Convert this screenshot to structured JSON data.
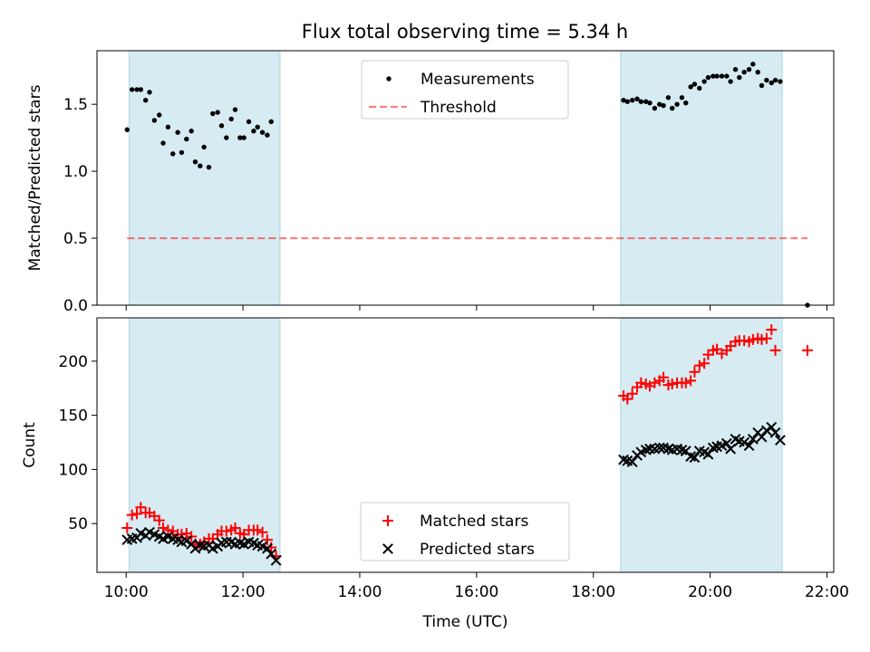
{
  "figure": {
    "title": "Flux total observing time = 5.34 h"
  },
  "colors": {
    "span_fill": "#add8e6",
    "measurement": "#000000",
    "threshold": "#ff0000",
    "matched": "#ff0000",
    "predicted": "#000000"
  },
  "chart_data": [
    {
      "type": "scatter",
      "panel": "top",
      "ylabel": "Matched/Predicted stars",
      "xlim": [
        "09:30",
        "22:07"
      ],
      "ylim": [
        0,
        1.9
      ],
      "yticks": [
        0.0,
        0.5,
        1.0,
        1.5
      ],
      "ytick_labels": [
        "0.0",
        "0.5",
        "1.0",
        "1.5"
      ],
      "x_tick_labels_shown": false,
      "grid": false,
      "legend": {
        "placement": "upper-center",
        "entries": [
          "Measurements",
          "Threshold"
        ]
      },
      "shaded_spans": [
        {
          "start": "10:03",
          "end": "12:38"
        },
        {
          "start": "18:28",
          "end": "21:14"
        }
      ],
      "series": [
        {
          "name": "Measurements",
          "style": "dots",
          "points": [
            [
              "10:01",
              1.31
            ],
            [
              "10:06",
              1.61
            ],
            [
              "10:11",
              1.61
            ],
            [
              "10:15",
              1.61
            ],
            [
              "10:20",
              1.53
            ],
            [
              "10:24",
              1.59
            ],
            [
              "10:29",
              1.38
            ],
            [
              "10:34",
              1.42
            ],
            [
              "10:38",
              1.21
            ],
            [
              "10:43",
              1.33
            ],
            [
              "10:48",
              1.13
            ],
            [
              "10:53",
              1.29
            ],
            [
              "10:57",
              1.14
            ],
            [
              "11:02",
              1.24
            ],
            [
              "11:07",
              1.3
            ],
            [
              "11:11",
              1.07
            ],
            [
              "11:16",
              1.04
            ],
            [
              "11:20",
              1.18
            ],
            [
              "11:25",
              1.03
            ],
            [
              "11:29",
              1.43
            ],
            [
              "11:34",
              1.44
            ],
            [
              "11:38",
              1.34
            ],
            [
              "11:43",
              1.25
            ],
            [
              "11:48",
              1.39
            ],
            [
              "11:52",
              1.46
            ],
            [
              "11:57",
              1.25
            ],
            [
              "12:01",
              1.25
            ],
            [
              "12:06",
              1.37
            ],
            [
              "12:11",
              1.3
            ],
            [
              "12:15",
              1.33
            ],
            [
              "12:20",
              1.29
            ],
            [
              "12:25",
              1.27
            ],
            [
              "12:29",
              1.37
            ],
            [
              "18:31",
              1.53
            ],
            [
              "18:35",
              1.52
            ],
            [
              "18:40",
              1.53
            ],
            [
              "18:45",
              1.54
            ],
            [
              "18:49",
              1.52
            ],
            [
              "18:54",
              1.52
            ],
            [
              "18:58",
              1.51
            ],
            [
              "19:03",
              1.47
            ],
            [
              "19:08",
              1.5
            ],
            [
              "19:12",
              1.49
            ],
            [
              "19:17",
              1.55
            ],
            [
              "19:21",
              1.47
            ],
            [
              "19:26",
              1.5
            ],
            [
              "19:31",
              1.55
            ],
            [
              "19:35",
              1.51
            ],
            [
              "19:40",
              1.63
            ],
            [
              "19:44",
              1.65
            ],
            [
              "19:49",
              1.62
            ],
            [
              "19:54",
              1.67
            ],
            [
              "19:58",
              1.7
            ],
            [
              "20:03",
              1.71
            ],
            [
              "20:07",
              1.71
            ],
            [
              "20:12",
              1.71
            ],
            [
              "20:17",
              1.71
            ],
            [
              "20:21",
              1.67
            ],
            [
              "20:26",
              1.76
            ],
            [
              "20:30",
              1.7
            ],
            [
              "20:35",
              1.74
            ],
            [
              "20:40",
              1.76
            ],
            [
              "20:44",
              1.8
            ],
            [
              "20:49",
              1.74
            ],
            [
              "20:53",
              1.64
            ],
            [
              "20:58",
              1.68
            ],
            [
              "21:03",
              1.66
            ],
            [
              "21:07",
              1.68
            ],
            [
              "21:12",
              1.67
            ],
            [
              "21:40",
              0.0
            ]
          ]
        },
        {
          "name": "Threshold",
          "style": "dashed",
          "points": [
            [
              "10:01",
              0.5
            ],
            [
              "21:40",
              0.5
            ]
          ]
        }
      ]
    },
    {
      "type": "scatter",
      "panel": "bottom",
      "xlabel": "Time (UTC)",
      "ylabel": "Count",
      "xlim": [
        "09:30",
        "22:07"
      ],
      "ylim": [
        5,
        240
      ],
      "xticks": [
        "10:00",
        "12:00",
        "14:00",
        "16:00",
        "18:00",
        "20:00",
        "22:00"
      ],
      "yticks": [
        50,
        100,
        150,
        200
      ],
      "grid": false,
      "legend": {
        "placement": "lower-center",
        "entries": [
          "Matched stars",
          "Predicted stars"
        ]
      },
      "shaded_spans": [
        {
          "start": "10:03",
          "end": "12:38"
        },
        {
          "start": "18:28",
          "end": "21:14"
        }
      ],
      "series": [
        {
          "name": "Matched stars",
          "marker": "+",
          "points": [
            [
              "10:01",
              46
            ],
            [
              "10:06",
              58
            ],
            [
              "10:11",
              59
            ],
            [
              "10:15",
              65
            ],
            [
              "10:20",
              60
            ],
            [
              "10:24",
              60
            ],
            [
              "10:29",
              57
            ],
            [
              "10:34",
              53
            ],
            [
              "10:38",
              46
            ],
            [
              "10:43",
              44
            ],
            [
              "10:48",
              43
            ],
            [
              "10:53",
              40
            ],
            [
              "10:57",
              40
            ],
            [
              "11:02",
              41
            ],
            [
              "11:07",
              38
            ],
            [
              "11:11",
              31
            ],
            [
              "11:16",
              31
            ],
            [
              "11:20",
              33
            ],
            [
              "11:25",
              36
            ],
            [
              "11:29",
              36
            ],
            [
              "11:34",
              40
            ],
            [
              "11:38",
              43
            ],
            [
              "11:43",
              43
            ],
            [
              "11:48",
              44
            ],
            [
              "11:52",
              46
            ],
            [
              "11:57",
              41
            ],
            [
              "12:01",
              40
            ],
            [
              "12:06",
              44
            ],
            [
              "12:11",
              44
            ],
            [
              "12:15",
              44
            ],
            [
              "12:20",
              42
            ],
            [
              "12:25",
              35
            ],
            [
              "12:29",
              28
            ],
            [
              "12:34",
              20
            ],
            [
              "18:31",
              168
            ],
            [
              "18:35",
              165
            ],
            [
              "18:40",
              170
            ],
            [
              "18:45",
              176
            ],
            [
              "18:49",
              180
            ],
            [
              "18:54",
              179
            ],
            [
              "18:58",
              177
            ],
            [
              "19:03",
              180
            ],
            [
              "19:08",
              182
            ],
            [
              "19:12",
              185
            ],
            [
              "19:17",
              178
            ],
            [
              "19:21",
              179
            ],
            [
              "19:26",
              180
            ],
            [
              "19:31",
              180
            ],
            [
              "19:35",
              180
            ],
            [
              "19:40",
              182
            ],
            [
              "19:44",
              190
            ],
            [
              "19:49",
              196
            ],
            [
              "19:54",
              198
            ],
            [
              "19:58",
              206
            ],
            [
              "20:03",
              210
            ],
            [
              "20:07",
              211
            ],
            [
              "20:12",
              207
            ],
            [
              "20:17",
              210
            ],
            [
              "20:21",
              214
            ],
            [
              "20:26",
              218
            ],
            [
              "20:30",
              219
            ],
            [
              "20:35",
              219
            ],
            [
              "20:40",
              218
            ],
            [
              "20:44",
              220
            ],
            [
              "20:49",
              221
            ],
            [
              "20:53",
              220
            ],
            [
              "20:58",
              221
            ],
            [
              "21:03",
              229
            ],
            [
              "21:07",
              210
            ],
            [
              "21:40",
              210
            ]
          ]
        },
        {
          "name": "Predicted stars",
          "marker": "x",
          "points": [
            [
              "10:01",
              35
            ],
            [
              "10:06",
              36
            ],
            [
              "10:11",
              37
            ],
            [
              "10:15",
              41
            ],
            [
              "10:20",
              39
            ],
            [
              "10:24",
              42
            ],
            [
              "10:29",
              40
            ],
            [
              "10:34",
              38
            ],
            [
              "10:38",
              36
            ],
            [
              "10:43",
              38
            ],
            [
              "10:48",
              36
            ],
            [
              "10:53",
              35
            ],
            [
              "10:57",
              33
            ],
            [
              "11:02",
              34
            ],
            [
              "11:07",
              31
            ],
            [
              "11:11",
              27
            ],
            [
              "11:16",
              30
            ],
            [
              "11:20",
              29
            ],
            [
              "11:25",
              30
            ],
            [
              "11:29",
              27
            ],
            [
              "11:34",
              29
            ],
            [
              "11:38",
              32
            ],
            [
              "11:43",
              33
            ],
            [
              "11:48",
              33
            ],
            [
              "11:52",
              31
            ],
            [
              "11:57",
              32
            ],
            [
              "12:01",
              31
            ],
            [
              "12:06",
              33
            ],
            [
              "12:11",
              32
            ],
            [
              "12:15",
              30
            ],
            [
              "12:20",
              29
            ],
            [
              "12:25",
              27
            ],
            [
              "12:29",
              22
            ],
            [
              "12:34",
              16
            ],
            [
              "18:31",
              109
            ],
            [
              "18:35",
              108
            ],
            [
              "18:40",
              107
            ],
            [
              "18:45",
              113
            ],
            [
              "18:49",
              116
            ],
            [
              "18:54",
              118
            ],
            [
              "18:58",
              119
            ],
            [
              "19:03",
              119
            ],
            [
              "19:08",
              120
            ],
            [
              "19:12",
              120
            ],
            [
              "19:17",
              119
            ],
            [
              "19:21",
              118
            ],
            [
              "19:26",
              119
            ],
            [
              "19:31",
              118
            ],
            [
              "19:35",
              117
            ],
            [
              "19:40",
              112
            ],
            [
              "19:44",
              111
            ],
            [
              "19:49",
              117
            ],
            [
              "19:54",
              116
            ],
            [
              "19:58",
              114
            ],
            [
              "20:03",
              120
            ],
            [
              "20:07",
              121
            ],
            [
              "20:12",
              122
            ],
            [
              "20:17",
              124
            ],
            [
              "20:21",
              119
            ],
            [
              "20:26",
              128
            ],
            [
              "20:30",
              126
            ],
            [
              "20:35",
              125
            ],
            [
              "20:40",
              122
            ],
            [
              "20:44",
              128
            ],
            [
              "20:49",
              134
            ],
            [
              "20:53",
              130
            ],
            [
              "20:58",
              136
            ],
            [
              "21:03",
              139
            ],
            [
              "21:07",
              134
            ],
            [
              "21:12",
              127
            ]
          ]
        }
      ]
    }
  ]
}
